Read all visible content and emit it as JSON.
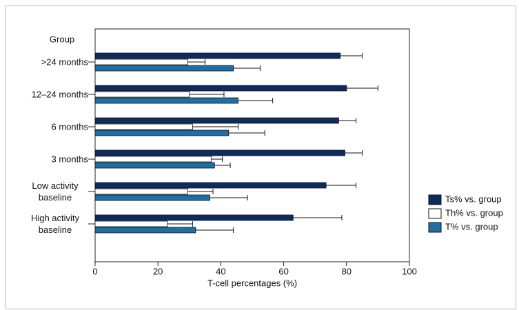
{
  "chart_data": {
    "type": "hbar",
    "y_label": "Group",
    "x_label": "T-cell percentages (%)",
    "categories": [
      ">24 months",
      "12–24 months",
      "6 months",
      "3 months",
      "Low activity baseline",
      "High activity baseline"
    ],
    "series": [
      {
        "name": "Ts% vs. group",
        "color": "#0d2b5c",
        "values": [
          78,
          80,
          77.5,
          79.5,
          73.5,
          63
        ],
        "errors": [
          7,
          10,
          5.5,
          5.5,
          9.5,
          15.5
        ]
      },
      {
        "name": "Th% vs. group",
        "color": "#ffffff",
        "values": [
          29.5,
          30,
          31,
          37,
          29.5,
          23
        ],
        "errors": [
          5.5,
          11,
          14.5,
          3.5,
          8,
          8
        ]
      },
      {
        "name": "T% vs. group",
        "color": "#1f6fa6",
        "values": [
          44,
          45.5,
          42.5,
          38,
          36.5,
          32
        ],
        "errors": [
          8.5,
          11,
          11.5,
          5,
          12,
          12
        ]
      }
    ],
    "xlim": [
      0,
      100
    ],
    "xticks": [
      0,
      20,
      40,
      60,
      80,
      100
    ],
    "legend": "right"
  }
}
